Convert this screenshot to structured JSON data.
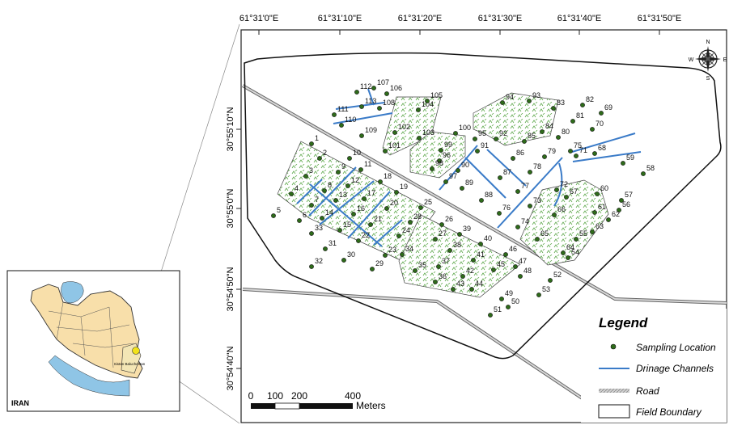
{
  "top_ticks": [
    "61°31'0\"E",
    "61°31'10\"E",
    "61°31'20\"E",
    "61°31'30\"E",
    "61°31'40\"E",
    "61°31'50\"E"
  ],
  "left_ticks": [
    "30°55'10\"N",
    "30°55'0\"N",
    "30°54'50\"N",
    "30°54'40\"N"
  ],
  "compass": {
    "n": "N",
    "s": "S",
    "e": "E",
    "w": "W"
  },
  "inset": {
    "country": "IRAN",
    "province": "Sistan Baluchestan"
  },
  "scale": {
    "labels": [
      "0",
      "100",
      "200",
      "400"
    ],
    "unit": "Meters"
  },
  "legend": {
    "title": "Legend",
    "items": [
      "Sampling Location",
      "Drinage Channels",
      "Road",
      "Field Boundary"
    ]
  },
  "colors": {
    "point": "#2e6b1a",
    "channel": "#3a7bc8",
    "field_hatch": "#5da84a",
    "iran_fill": "#f8dfaa",
    "sea": "#8fc5e6",
    "highlight": "#f2e21a"
  },
  "sampling_points": [
    "1",
    "2",
    "3",
    "4",
    "5",
    "6",
    "7",
    "8",
    "9",
    "10",
    "11",
    "12",
    "13",
    "14",
    "15",
    "16",
    "17",
    "18",
    "19",
    "20",
    "21",
    "22",
    "23",
    "24",
    "25",
    "26",
    "27",
    "28",
    "29",
    "30",
    "31",
    "32",
    "33",
    "34",
    "35",
    "36",
    "37",
    "38",
    "39",
    "40",
    "41",
    "42",
    "43",
    "44",
    "45",
    "46",
    "47",
    "48",
    "49",
    "50",
    "51",
    "52",
    "53",
    "54",
    "55",
    "56",
    "57",
    "58",
    "59",
    "60",
    "61",
    "62",
    "63",
    "64",
    "65",
    "66",
    "67",
    "68",
    "69",
    "70",
    "71",
    "72",
    "73",
    "74",
    "75",
    "76",
    "77",
    "78",
    "79",
    "80",
    "81",
    "82",
    "83",
    "84",
    "85",
    "86",
    "87",
    "88",
    "89",
    "90",
    "91",
    "92",
    "93",
    "94",
    "95",
    "96",
    "97",
    "98",
    "99",
    "100",
    "101",
    "102",
    "103",
    "104",
    "105",
    "106",
    "107",
    "108",
    "109",
    "110",
    "111",
    "112",
    "113"
  ]
}
